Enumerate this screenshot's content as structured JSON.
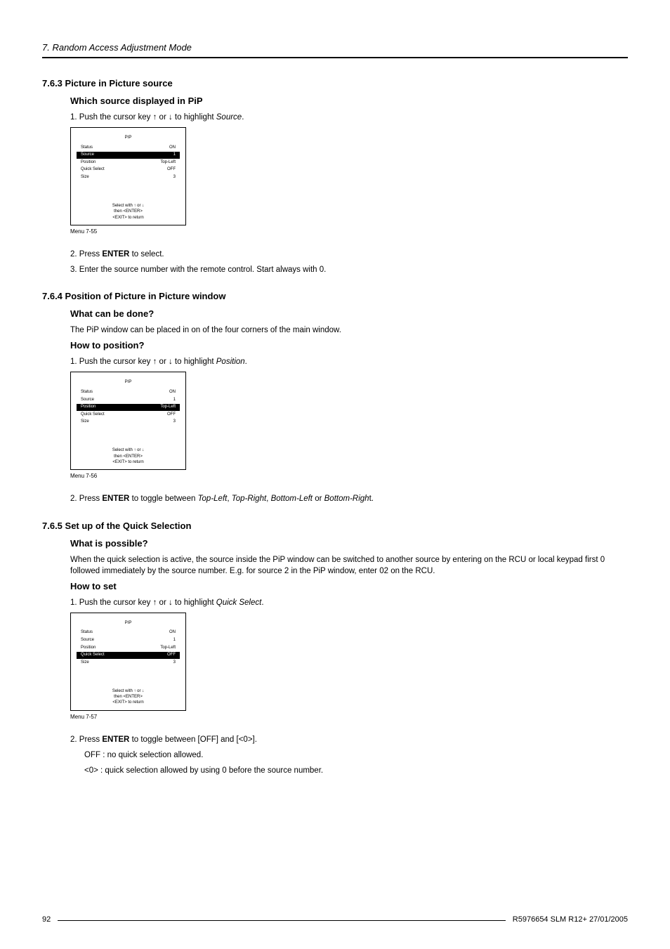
{
  "chapter": "7. Random Access Adjustment Mode",
  "page_number": "92",
  "footer_right": "R5976654 SLM R12+ 27/01/2005",
  "sections": {
    "s763": {
      "num_title": "7.6.3   Picture in Picture source",
      "sub1": "Which source displayed in PiP",
      "step1_pre": "1.  Push the cursor key ↑ or ↓ to highlight ",
      "step1_em": "Source",
      "step1_post": ".",
      "menu": {
        "title": "PIP",
        "status_l": "Status",
        "status_r": "ON",
        "source_l": "Source",
        "source_r": "1",
        "position_l": "Position",
        "position_r": "Top-Left",
        "quick_l": "Quick Select",
        "quick_r": "OFF",
        "size_l": "Size",
        "size_r": "3",
        "foot1": "Select with ↑ or ↓",
        "foot2": "then <ENTER>",
        "foot3": "<EXIT> to return"
      },
      "caption": "Menu 7-55",
      "step2_pre": "2.  Press ",
      "step2_b": "ENTER",
      "step2_post": " to select.",
      "step3": "3.  Enter the source number with the remote control.  Start always with 0."
    },
    "s764": {
      "num_title": "7.6.4   Position of Picture in Picture window",
      "sub1": "What can be done?",
      "body1": "The PiP window can be placed in on of the four corners of the main window.",
      "sub2": "How to position?",
      "step1_pre": "1.  Push the cursor key ↑ or ↓ to highlight ",
      "step1_em": "Position",
      "step1_post": ".",
      "menu": {
        "title": "PIP",
        "status_l": "Status",
        "status_r": "ON",
        "source_l": "Source",
        "source_r": "1",
        "position_l": "Position",
        "position_r": "Top-Left",
        "quick_l": "Quick Select",
        "quick_r": "OFF",
        "size_l": "Size",
        "size_r": "3",
        "foot1": "Select with ↑ or ↓",
        "foot2": "then <ENTER>",
        "foot3": "<EXIT> to return"
      },
      "caption": "Menu 7-56",
      "step2_pre": "2.  Press ",
      "step2_b": "ENTER",
      "step2_mid": " to toggle between ",
      "step2_i1": "Top-Left",
      "step2_c1": ", ",
      "step2_i2": "Top-Right",
      "step2_c2": ", ",
      "step2_i3": "Bottom-Left",
      "step2_c3": " or ",
      "step2_i4": "Bottom-Righ",
      "step2_t": "t."
    },
    "s765": {
      "num_title": "7.6.5   Set up of the Quick Selection",
      "sub1": "What is possible?",
      "body1": "When the quick selection is active, the source inside the PiP window can be switched to another source by entering on the RCU or local keypad first 0 followed immediately by the source number.  E.g. for source 2 in the PiP window, enter 02 on the RCU.",
      "sub2": "How to set",
      "step1_pre": "1.  Push the cursor key ↑ or ↓ to highlight ",
      "step1_em": "Quick Select",
      "step1_post": ".",
      "menu": {
        "title": "PIP",
        "status_l": "Status",
        "status_r": "ON",
        "source_l": "Source",
        "source_r": "1",
        "position_l": "Position",
        "position_r": "Top-Left",
        "quick_l": "Quick Select",
        "quick_r": "OFF",
        "size_l": "Size",
        "size_r": "3",
        "foot1": "Select with ↑ or ↓",
        "foot2": "then <ENTER>",
        "foot3": "<EXIT> to return"
      },
      "caption": "Menu 7-57",
      "step2_pre": "2.  Press ",
      "step2_b": "ENTER",
      "step2_post": " to toggle between [OFF] and [<0>].",
      "off_line": "OFF : no quick selection allowed.",
      "zero_line": "<0> : quick selection allowed by using 0 before the source number."
    }
  }
}
